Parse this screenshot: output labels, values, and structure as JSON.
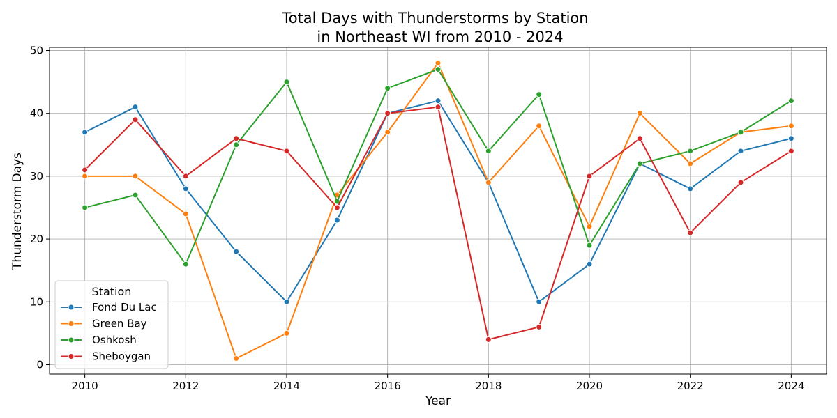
{
  "chart_data": {
    "type": "line",
    "title": [
      "Total Days with Thunderstorms by Station",
      "in Northeast WI from 2010 - 2024"
    ],
    "xlabel": "Year",
    "ylabel": "Thunderstorm Days",
    "x": [
      2010,
      2011,
      2012,
      2013,
      2014,
      2015,
      2016,
      2017,
      2018,
      2019,
      2020,
      2021,
      2022,
      2023,
      2024
    ],
    "xlim": [
      2009.3,
      2024.7
    ],
    "ylim": [
      -1.5,
      50.5
    ],
    "xticks": [
      2010,
      2012,
      2014,
      2016,
      2018,
      2020,
      2022,
      2024
    ],
    "yticks": [
      0,
      10,
      20,
      30,
      40,
      50
    ],
    "grid": true,
    "legend": {
      "title": "Station",
      "placement": "lower-left"
    },
    "series": [
      {
        "name": "Fond Du Lac",
        "color": "#1f77b4",
        "values": [
          37,
          41,
          28,
          18,
          10,
          23,
          40,
          42,
          29,
          10,
          16,
          32,
          28,
          34,
          36
        ]
      },
      {
        "name": "Green Bay",
        "color": "#ff7f0e",
        "values": [
          30,
          30,
          24,
          1,
          5,
          27,
          37,
          48,
          29,
          38,
          22,
          40,
          32,
          37,
          38
        ]
      },
      {
        "name": "Oshkosh",
        "color": "#2ca02c",
        "values": [
          25,
          27,
          16,
          35,
          45,
          26,
          44,
          47,
          34,
          43,
          19,
          32,
          34,
          37,
          42
        ]
      },
      {
        "name": "Sheboygan",
        "color": "#d62728",
        "values": [
          31,
          39,
          30,
          36,
          34,
          25,
          40,
          41,
          4,
          6,
          30,
          36,
          21,
          29,
          34
        ]
      }
    ]
  }
}
